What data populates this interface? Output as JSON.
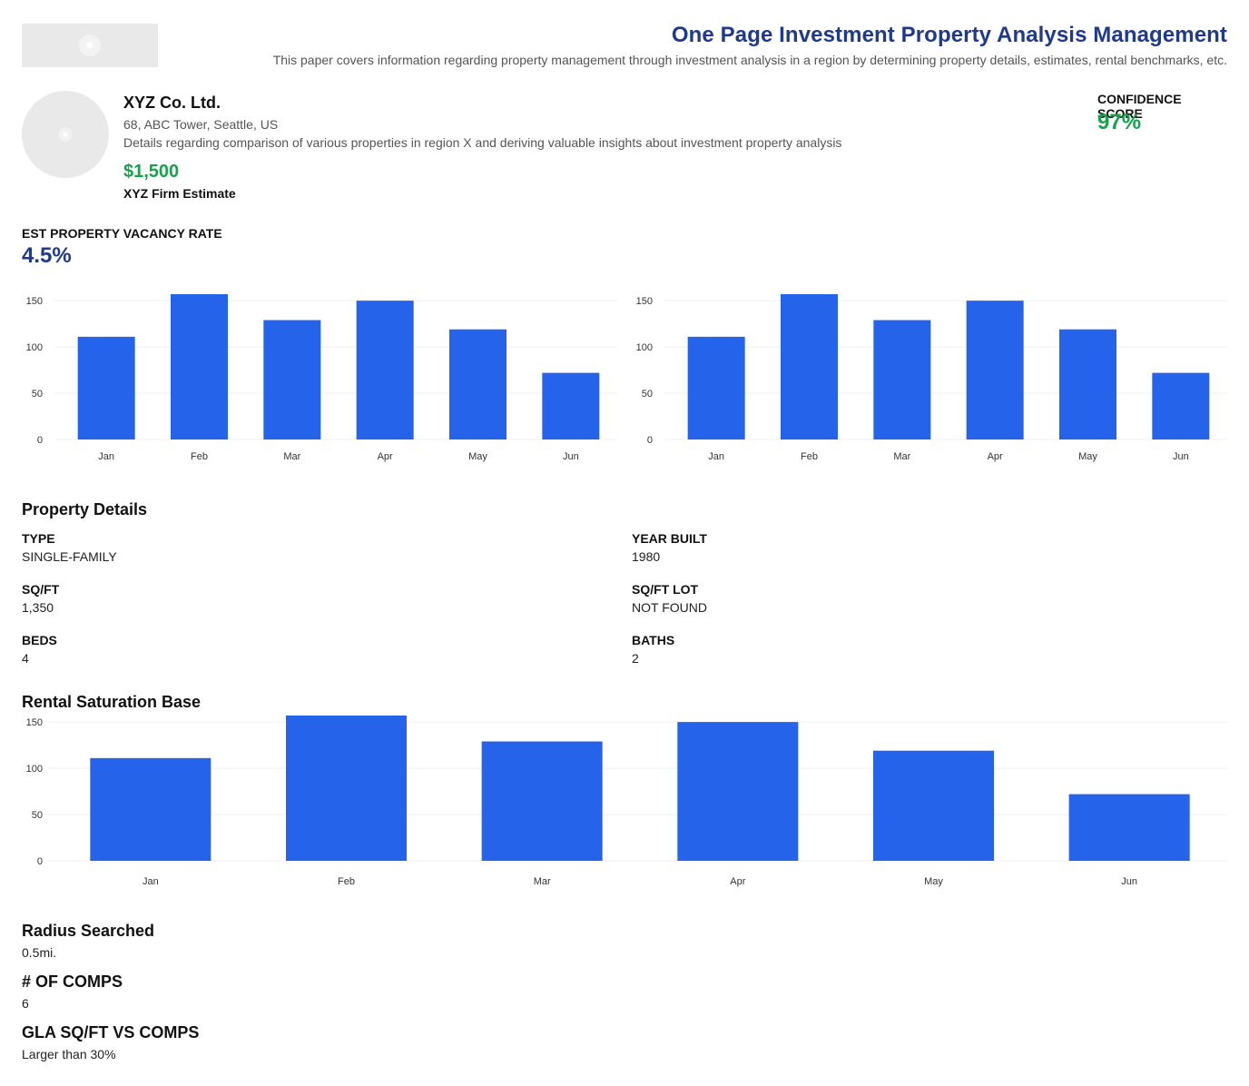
{
  "header": {
    "title": "One Page Investment Property Analysis Management",
    "subtitle": "This paper covers information regarding property management through investment analysis in a region by determining property details, estimates, rental benchmarks, etc."
  },
  "company": {
    "name": "XYZ Co. Ltd.",
    "address": "68, ABC Tower, Seattle, US",
    "description": "Details regarding comparison of various properties in region X and deriving valuable insights about investment property analysis",
    "estimate_value": "$1,500",
    "estimate_label": "XYZ Firm Estimate"
  },
  "confidence": {
    "label": "CONFIDENCE SCORE",
    "value": "97%"
  },
  "vacancy": {
    "label": "EST PROPERTY VACANCY RATE",
    "value": "4.5%"
  },
  "colors": {
    "bar": "#2563eb",
    "title": "#1e3a8a",
    "accent_green": "#16a34a"
  },
  "chart_data": [
    {
      "type": "bar",
      "categories": [
        "Jan",
        "Feb",
        "Mar",
        "Apr",
        "May",
        "Jun"
      ],
      "values": [
        111,
        157,
        129,
        150,
        119,
        72
      ],
      "ylim": [
        0,
        157
      ],
      "yticks": [
        0,
        50,
        100,
        150
      ],
      "grid": true
    },
    {
      "type": "bar",
      "categories": [
        "Jan",
        "Feb",
        "Mar",
        "Apr",
        "May",
        "Jun"
      ],
      "values": [
        111,
        157,
        129,
        150,
        119,
        72
      ],
      "ylim": [
        0,
        157
      ],
      "yticks": [
        0,
        50,
        100,
        150
      ],
      "grid": true
    },
    {
      "type": "bar",
      "categories": [
        "Jan",
        "Feb",
        "Mar",
        "Apr",
        "May",
        "Jun"
      ],
      "values": [
        111,
        157,
        129,
        150,
        119,
        72
      ],
      "ylim": [
        0,
        157
      ],
      "yticks": [
        0,
        50,
        100,
        150
      ],
      "grid": true
    }
  ],
  "property_details": {
    "title": "Property Details",
    "type_label": "TYPE",
    "type_value": "SINGLE-FAMILY",
    "year_label": "YEAR BUILT",
    "year_value": "1980",
    "sqft_label": "SQ/FT",
    "sqft_value": "1,350",
    "lot_label": "SQ/FT LOT",
    "lot_value": "NOT FOUND",
    "beds_label": "BEDS",
    "beds_value": "4",
    "baths_label": "BATHS",
    "baths_value": "2"
  },
  "rental": {
    "title": "Rental Saturation Base"
  },
  "info": {
    "radius_title": "Radius Searched",
    "radius_value": "0.5mi.",
    "comps_title": "# OF COMPS",
    "comps_value": "6",
    "gla_title": "GLA SQ/FT VS COMPS",
    "gla_value": "Larger than 30%"
  }
}
